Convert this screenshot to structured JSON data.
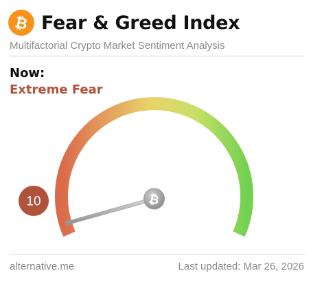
{
  "header": {
    "logo_icon": "bitcoin-icon",
    "title": "Fear & Greed Index",
    "subtitle": "Multifactorial Crypto Market Sentiment Analysis"
  },
  "current": {
    "label": "Now:",
    "classification": "Extreme Fear",
    "value": "10",
    "value_numeric": 10,
    "scale_min": 0,
    "scale_max": 100
  },
  "colors": {
    "brand": "#f7931a",
    "extreme_fear": "#b0533a",
    "gauge_low": "#e07a55",
    "gauge_mid": "#e8d36a",
    "gauge_high": "#7fd65a"
  },
  "footer": {
    "source": "alternative.me",
    "updated": "Last updated: Mar 26, 2026"
  }
}
